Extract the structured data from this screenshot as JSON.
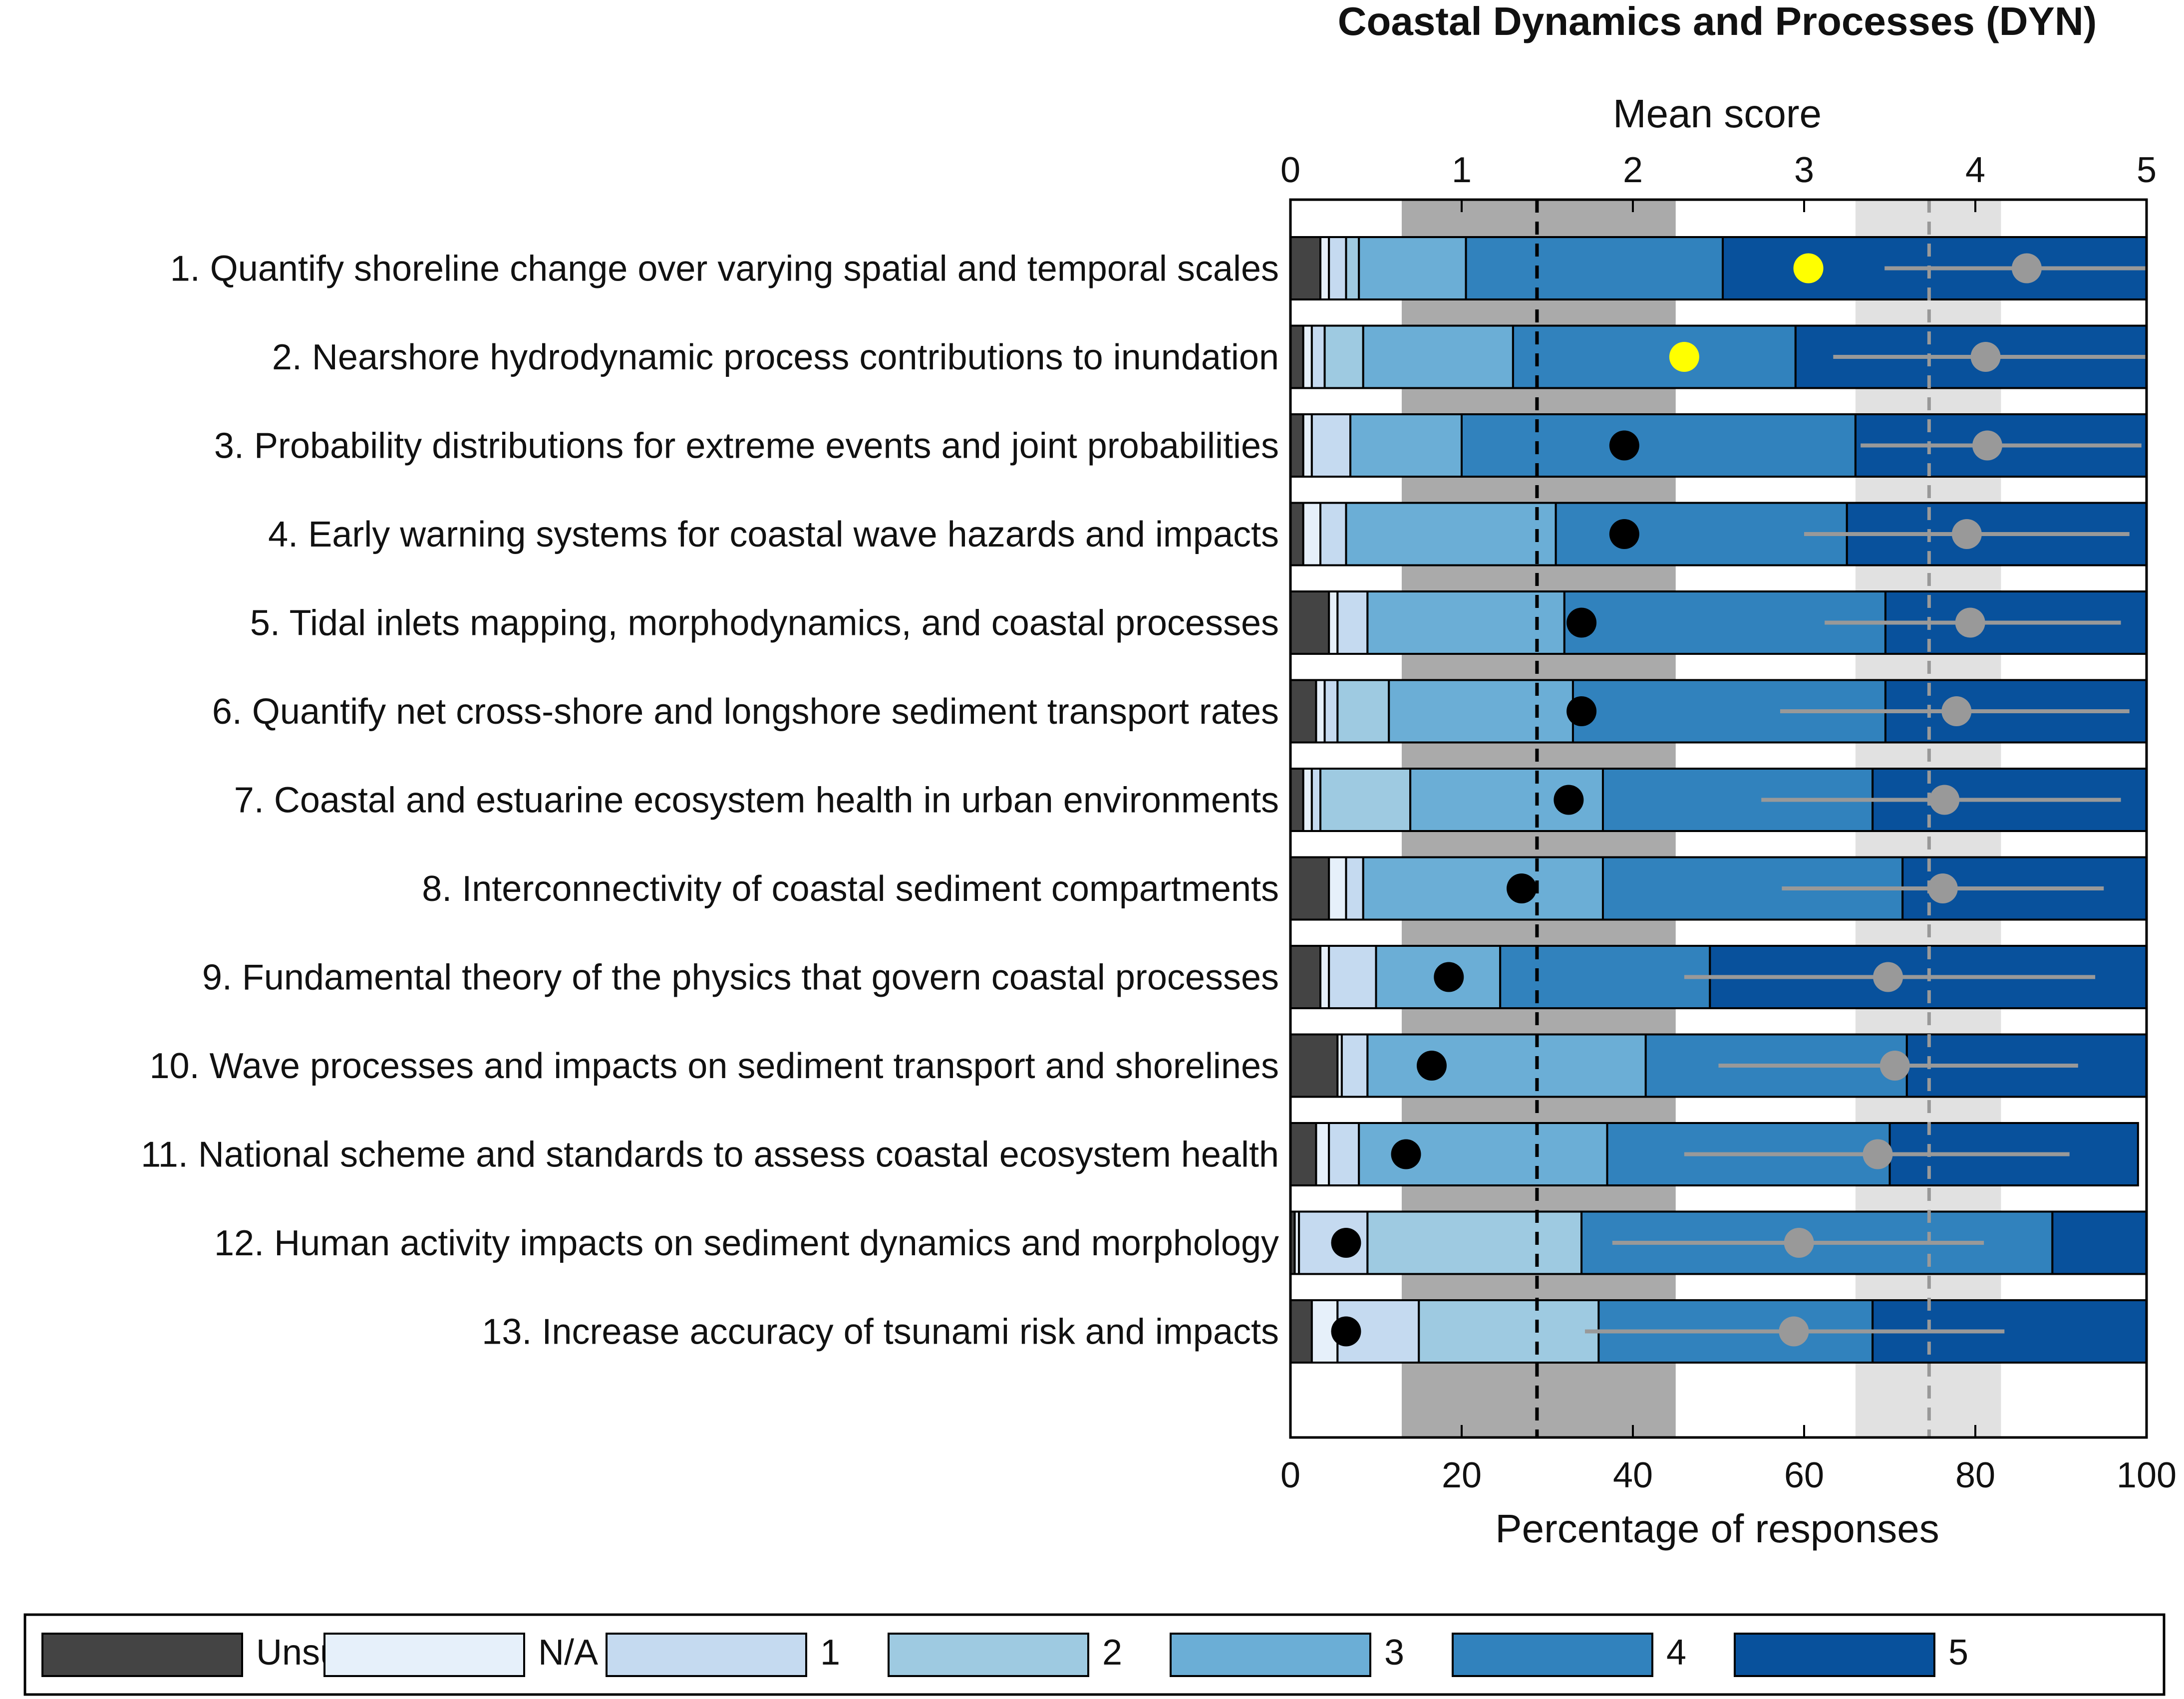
{
  "chart_data": {
    "type": "bar",
    "orientation": "horizontal-stacked",
    "title": "Coastal Dynamics and Processes (DYN)",
    "top_axis": {
      "label": "Mean score",
      "ticks": [
        "0",
        "1",
        "2",
        "3",
        "4",
        "5"
      ],
      "range": [
        0,
        5
      ]
    },
    "bottom_axis": {
      "label": "Percentage of responses",
      "ticks": [
        "0",
        "20",
        "40",
        "60",
        "80",
        "100"
      ],
      "range": [
        0,
        100
      ]
    },
    "categories": [
      "1. Quantify shoreline change over varying spatial and temporal scales",
      "2. Nearshore hydrodynamic process contributions to inundation",
      "3. Probability distributions for extreme events and joint probabilities",
      "4. Early warning systems for coastal wave hazards and impacts",
      "5. Tidal inlets mapping, morphodynamics, and coastal processes",
      "6. Quantify net cross-shore and longshore sediment transport rates",
      "7. Coastal and estuarine ecosystem health in urban environments",
      "8. Interconnectivity of coastal sediment compartments",
      "9. Fundamental theory of the physics that govern coastal processes",
      "10. Wave processes and impacts on sediment transport and shorelines",
      "11. National scheme and standards to assess coastal ecosystem health",
      "12. Human activity impacts on sediment dynamics and morphology",
      "13. Increase accuracy of tsunami risk and impacts"
    ],
    "series": [
      {
        "name": "Unsure",
        "color": "#444444",
        "values": [
          3.5,
          1.5,
          1.5,
          1.5,
          4.5,
          3.0,
          1.5,
          4.5,
          3.5,
          5.5,
          3.0,
          0.5,
          2.5
        ]
      },
      {
        "name": "N/A",
        "color": "#e6f0fa",
        "values": [
          1.0,
          1.0,
          1.0,
          2.0,
          1.0,
          1.0,
          1.0,
          2.0,
          1.0,
          0.5,
          1.5,
          0.5,
          3.0
        ]
      },
      {
        "name": "1",
        "color": "#c5daf0",
        "values": [
          2.0,
          1.5,
          4.5,
          3.0,
          3.5,
          1.5,
          1.0,
          2.0,
          5.5,
          3.0,
          3.5,
          8.0,
          9.5
        ]
      },
      {
        "name": "2",
        "color": "#9ecae1",
        "values": [
          1.5,
          4.5,
          0,
          0,
          0,
          6.0,
          10.5,
          0,
          0,
          0,
          0,
          25.0,
          21.0
        ]
      },
      {
        "name": "3",
        "color": "#6baed6",
        "values": [
          12.5,
          17.5,
          13.0,
          24.5,
          23.0,
          21.5,
          22.5,
          28.0,
          14.5,
          32.5,
          29.0,
          0,
          0
        ]
      },
      {
        "name": "4",
        "color": "#3182bd",
        "values": [
          30.0,
          33.0,
          46.0,
          34.0,
          37.5,
          36.5,
          31.5,
          35.0,
          24.5,
          30.5,
          33.0,
          55.0,
          32.0
        ]
      },
      {
        "name": "5",
        "color": "#08519c",
        "values": [
          49.5,
          41.0,
          34.0,
          35.0,
          30.5,
          30.5,
          32.0,
          28.5,
          51.0,
          28.0,
          29.0,
          11.0,
          32.0
        ]
      }
    ],
    "rank_markers": {
      "unit": "percentage",
      "values": [
        60.5,
        46.0,
        39.0,
        39.0,
        34.0,
        34.0,
        32.5,
        27.0,
        18.5,
        16.5,
        13.5,
        6.5,
        6.5
      ],
      "colors": [
        "#ffff00",
        "#ffff00",
        "#000000",
        "#000000",
        "#000000",
        "#000000",
        "#000000",
        "#000000",
        "#000000",
        "#000000",
        "#000000",
        "#000000",
        "#000000"
      ]
    },
    "mean_score": {
      "unit": "score",
      "values": [
        4.3,
        4.06,
        4.07,
        3.95,
        3.97,
        3.89,
        3.82,
        3.81,
        3.49,
        3.53,
        3.43,
        2.97,
        2.94
      ],
      "ci_low": [
        3.47,
        3.17,
        3.33,
        3.0,
        3.12,
        2.86,
        2.75,
        2.87,
        2.3,
        2.5,
        2.3,
        1.88,
        1.72
      ],
      "ci_high": [
        5.0,
        5.0,
        4.97,
        4.9,
        4.85,
        4.9,
        4.85,
        4.75,
        4.7,
        4.6,
        4.55,
        4.05,
        4.17
      ],
      "color": "#999999"
    },
    "bands": [
      {
        "name": "low band",
        "range": [
          0.65,
          2.25
        ],
        "mean": 1.44,
        "color": "#aaaaaa"
      },
      {
        "name": "high band",
        "range": [
          3.3,
          4.15
        ],
        "mean": 3.73,
        "color": "#e1e1e1"
      }
    ]
  }
}
